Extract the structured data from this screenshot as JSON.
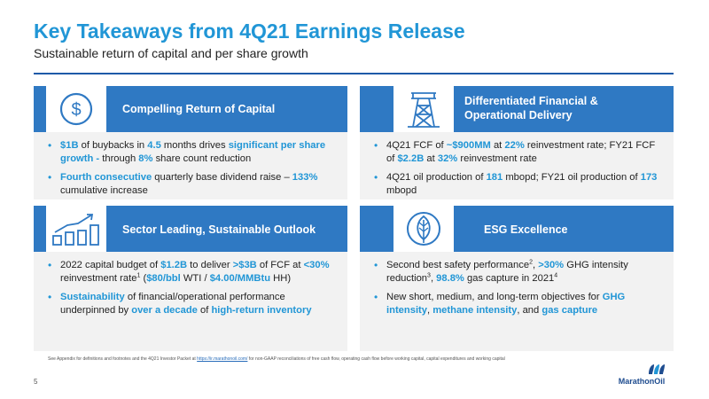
{
  "header": {
    "title": "Key Takeaways from 4Q21 Earnings Release",
    "subtitle": "Sustainable return of capital and per share growth"
  },
  "panels": [
    {
      "heading": "Compelling Return of Capital",
      "icon": "dollar-circle-icon",
      "bullets": [
        [
          [
            "$1B",
            true
          ],
          [
            " of buybacks in ",
            false
          ],
          [
            "4.5",
            true
          ],
          [
            " months drives ",
            false
          ],
          [
            "significant per share growth -",
            true
          ],
          [
            " through ",
            false
          ],
          [
            "8%",
            true
          ],
          [
            " share count reduction",
            false
          ]
        ],
        [
          [
            "Fourth consecutive",
            true
          ],
          [
            " quarterly base dividend raise – ",
            false
          ],
          [
            "133%",
            true
          ],
          [
            " cumulative increase",
            false
          ]
        ]
      ]
    },
    {
      "heading_lines": [
        "Differentiated Financial &",
        "Operational Delivery"
      ],
      "icon": "oil-derrick-icon",
      "bullets": [
        [
          [
            "4Q21 FCF of ",
            false
          ],
          [
            "~$900MM",
            true
          ],
          [
            " at ",
            false
          ],
          [
            "22%",
            true
          ],
          [
            " reinvestment rate; FY21 FCF of ",
            false
          ],
          [
            "$2.2B",
            true
          ],
          [
            " at ",
            false
          ],
          [
            "32%",
            true
          ],
          [
            " reinvestment rate",
            false
          ]
        ],
        [
          [
            "4Q21 oil production of ",
            false
          ],
          [
            "181",
            true
          ],
          [
            " mbopd; FY21 oil production of ",
            false
          ],
          [
            "173",
            true
          ],
          [
            " mbopd",
            false
          ]
        ]
      ]
    },
    {
      "heading": "Sector Leading, Sustainable Outlook",
      "icon": "growth-chart-icon",
      "bullets": [
        [
          [
            "2022 capital budget of ",
            false
          ],
          [
            "$1.2B",
            true
          ],
          [
            " to deliver ",
            false
          ],
          [
            ">$3B",
            true
          ],
          [
            " of FCF at ",
            false
          ],
          [
            "<30%",
            true
          ],
          [
            " reinvestment rate",
            false
          ],
          [
            "1",
            "sup"
          ],
          [
            " (",
            false
          ],
          [
            "$80/bbl",
            true
          ],
          [
            " WTI / ",
            false
          ],
          [
            "$4.00/MMBtu",
            true
          ],
          [
            " HH)",
            false
          ]
        ],
        [
          [
            "Sustainability",
            true
          ],
          [
            " of financial/operational performance underpinned by ",
            false
          ],
          [
            "over a decade",
            true
          ],
          [
            " of ",
            false
          ],
          [
            "high-return inventory",
            true
          ]
        ]
      ]
    },
    {
      "heading": "ESG Excellence",
      "icon": "leaf-icon",
      "bullets": [
        [
          [
            "Second best safety performance",
            false
          ],
          [
            "2",
            "sup"
          ],
          [
            ", ",
            false
          ],
          [
            ">30%",
            true
          ],
          [
            " GHG intensity reduction",
            false
          ],
          [
            "3",
            "sup"
          ],
          [
            ", ",
            false
          ],
          [
            "98.8%",
            true
          ],
          [
            " gas capture in 2021",
            false
          ],
          [
            "4",
            "sup"
          ]
        ],
        [
          [
            "New short, medium, and long-term objectives for ",
            false
          ],
          [
            "GHG intensity",
            true
          ],
          [
            ", ",
            false
          ],
          [
            "methane intensity",
            true
          ],
          [
            ", and ",
            false
          ],
          [
            "gas capture",
            true
          ]
        ]
      ]
    }
  ],
  "footnote": {
    "before": "See Appendix for definitions and footnotes and the 4Q21 Investor Packet at ",
    "link": "https://ir.marathonoil.com/",
    "after": " for non-GAAP reconciliations of free cash flow, operating cash flow before working capital, capital expenditures and working capital"
  },
  "page_number": "5",
  "logo": {
    "text": "MarathonOil"
  },
  "colors": {
    "accent": "#2196d6",
    "panel_header": "#2f79c3",
    "panel_body": "#f2f2f2",
    "rule": "#1e5aa8"
  }
}
